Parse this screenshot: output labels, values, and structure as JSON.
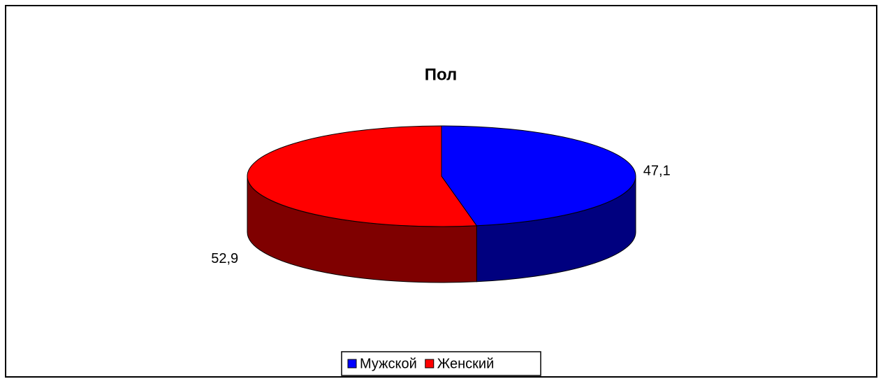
{
  "chart_data": {
    "type": "pie",
    "title": "Пол",
    "categories": [
      "Мужской",
      "Женский"
    ],
    "values": [
      47.1,
      52.9
    ],
    "value_labels": [
      "47,1",
      "52,9"
    ],
    "colors": [
      "#0000ff",
      "#ff0000"
    ],
    "legend": "bottom"
  }
}
